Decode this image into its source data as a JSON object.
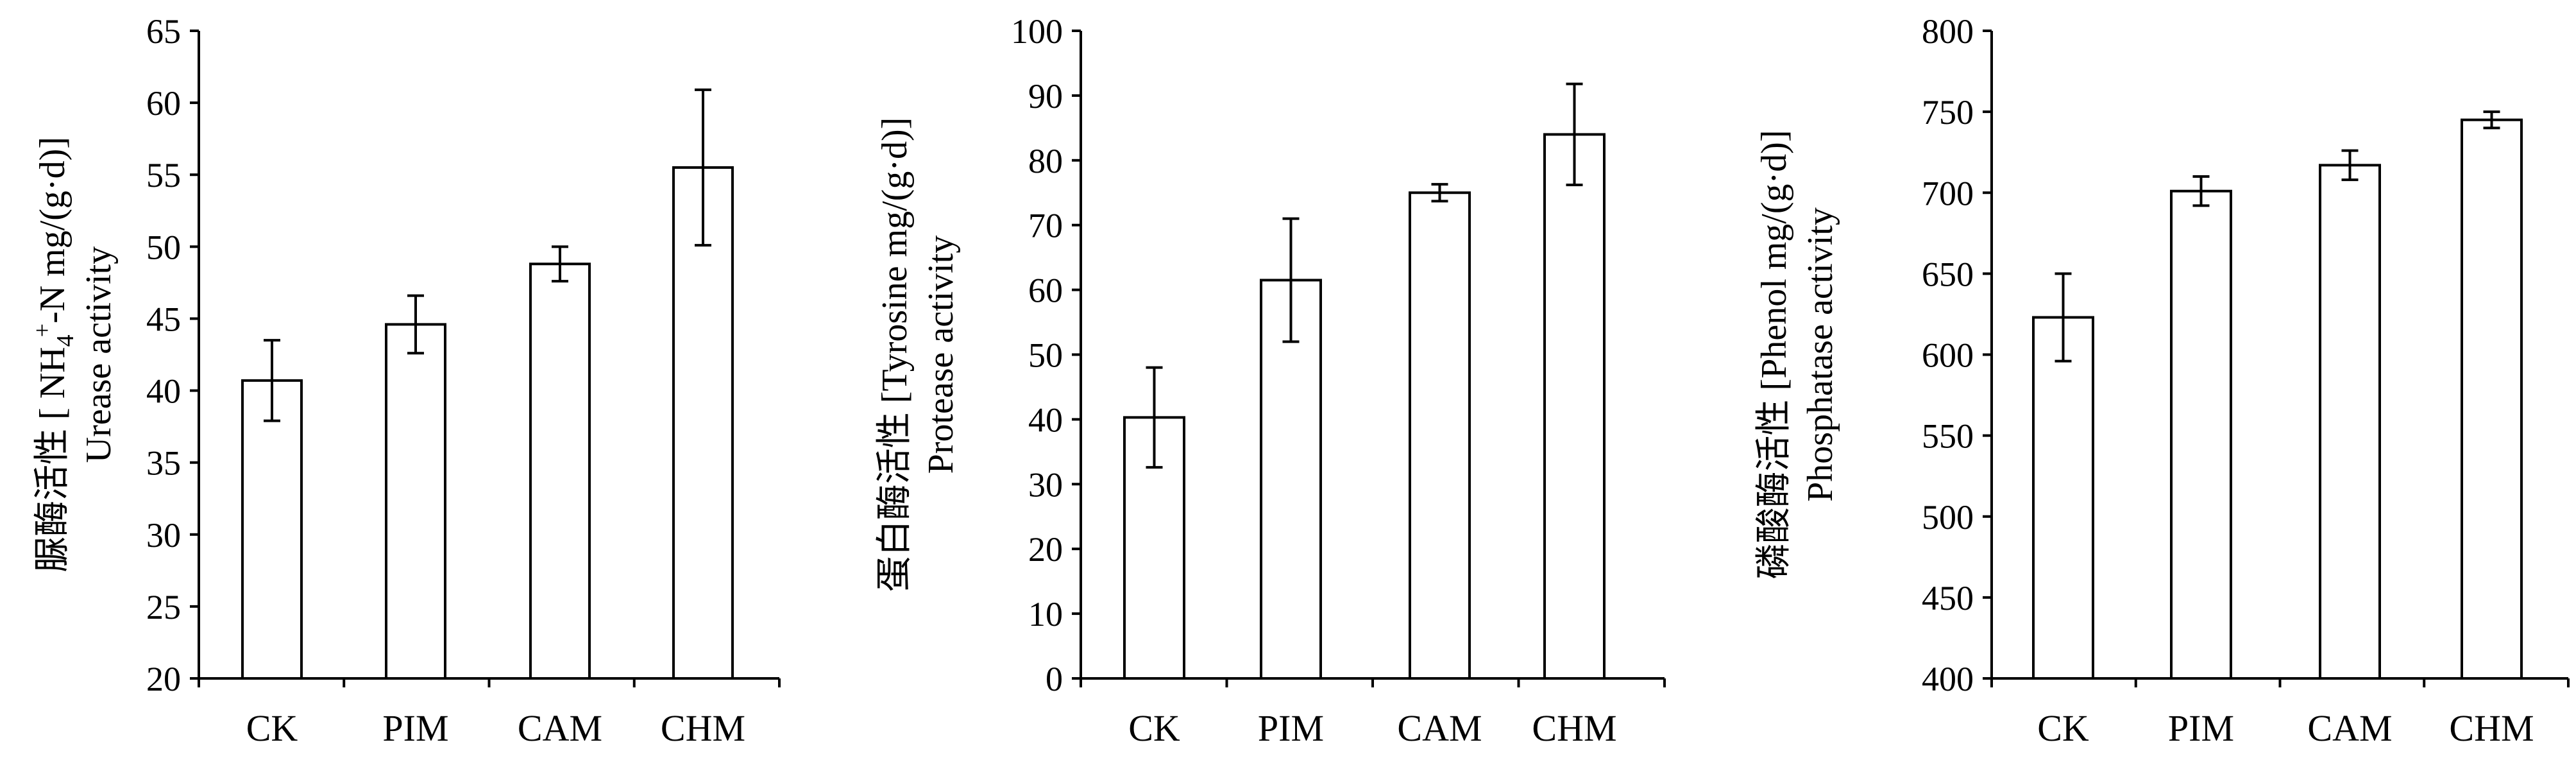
{
  "chart_data": [
    {
      "type": "bar",
      "categories": [
        "CK",
        "PIM",
        "CAM",
        "CHM"
      ],
      "values": [
        40.7,
        44.6,
        48.8,
        55.5
      ],
      "errors": [
        2.8,
        2.0,
        1.2,
        5.4
      ],
      "ylim": [
        20,
        65
      ],
      "yticks": [
        "20",
        "25",
        "30",
        "35",
        "40",
        "45",
        "50",
        "55",
        "60",
        "65"
      ],
      "ylabel_parts": [
        "脲酶活性 [ NH",
        "4",
        "+",
        "-N mg/(g·d)]"
      ],
      "ylabel2": "Urease activity",
      "grid": false
    },
    {
      "type": "bar",
      "categories": [
        "CK",
        "PIM",
        "CAM",
        "CHM"
      ],
      "values": [
        40.3,
        61.5,
        75.0,
        84.0
      ],
      "errors": [
        7.7,
        9.5,
        1.3,
        7.8
      ],
      "ylim": [
        0,
        100
      ],
      "yticks": [
        "0",
        "10",
        "20",
        "30",
        "40",
        "50",
        "60",
        "70",
        "80",
        "90",
        "100"
      ],
      "ylabel_parts": [
        "蛋白酶活性 [Tyrosine mg/(g·d)]"
      ],
      "ylabel2": "Protease activity",
      "grid": false
    },
    {
      "type": "bar",
      "categories": [
        "CK",
        "PIM",
        "CAM",
        "CHM"
      ],
      "values": [
        623,
        701,
        717,
        745
      ],
      "errors": [
        27,
        9,
        9,
        5
      ],
      "ylim": [
        400,
        800
      ],
      "yticks": [
        "400",
        "450",
        "500",
        "550",
        "600",
        "650",
        "700",
        "750",
        "800"
      ],
      "ylabel_parts": [
        "磷酸酶活性 [Phenol mg/(g·d)]"
      ],
      "ylabel2": "Phosphatase activity",
      "grid": false
    }
  ]
}
